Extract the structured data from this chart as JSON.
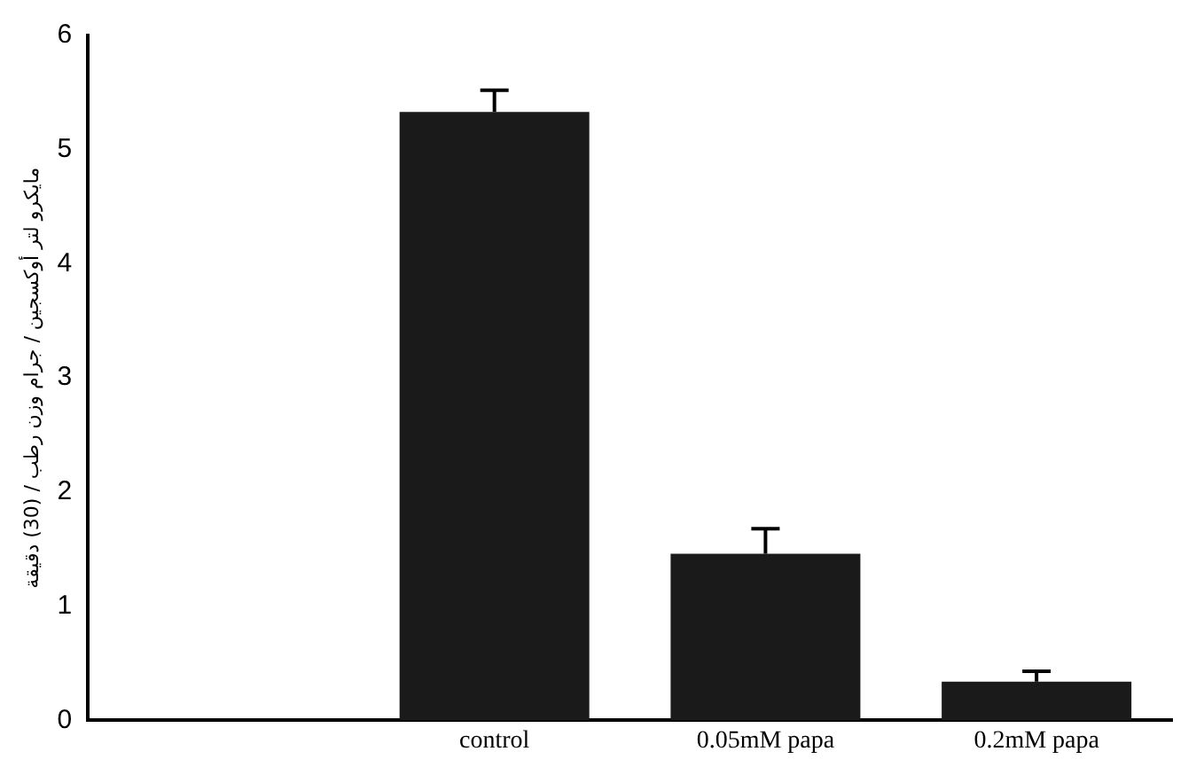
{
  "chart_data": {
    "type": "bar",
    "ylabel": "مايكرو لتر أوكسجين / جرام وزن رطب / (30) دقيقة",
    "categories": [
      null,
      "control",
      "0.05mM papa",
      "0.2mM papa"
    ],
    "values": [
      null,
      5.33,
      1.46,
      0.34
    ],
    "errors": [
      null,
      0.19,
      0.22,
      0.09
    ],
    "color": "#1a1a1a",
    "ylim": [
      0,
      6
    ],
    "yticks": [
      0,
      1,
      2,
      3,
      4,
      5,
      6
    ],
    "grid": false,
    "legend": false
  }
}
